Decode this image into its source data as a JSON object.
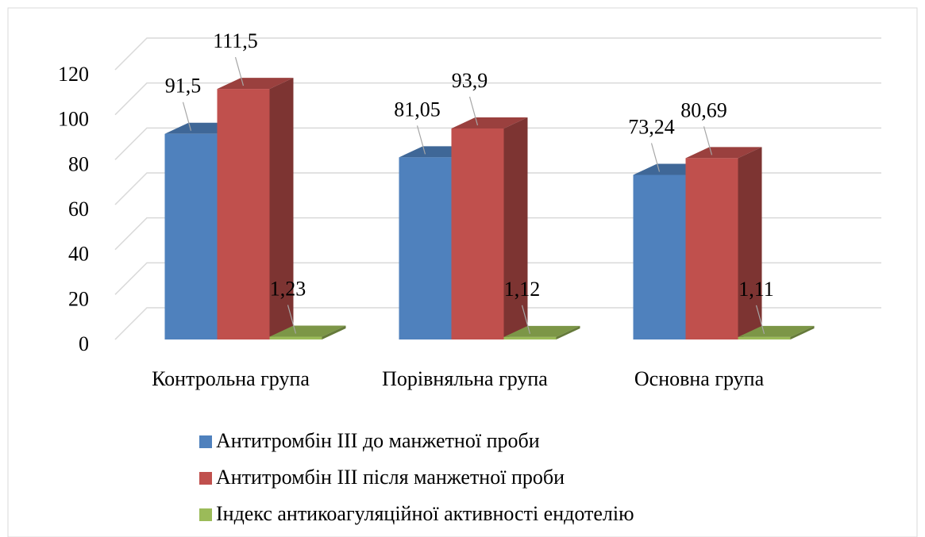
{
  "chart_data": {
    "type": "bar3d",
    "categories": [
      "Контрольна група",
      "Порівняльна група",
      "Основна група"
    ],
    "series": [
      {
        "name": "Антитромбін III до манжетної проби",
        "color": "#4f81bd",
        "values": [
          91.5,
          81.05,
          73.24
        ],
        "value_labels": [
          "91,5",
          "81,05",
          "73,24"
        ]
      },
      {
        "name": "Антитромбін III після манжетної проби",
        "color": "#c0504d",
        "values": [
          111.5,
          93.9,
          80.69
        ],
        "value_labels": [
          "111,5",
          "93,9",
          "80,69"
        ]
      },
      {
        "name": "Індекс антикоагуляційної активності ендотелію",
        "color": "#9bbb59",
        "values": [
          1.23,
          1.12,
          1.11
        ],
        "value_labels": [
          "1,23",
          "1,12",
          "1,11"
        ]
      }
    ],
    "ylim": [
      0,
      120
    ],
    "yticks": [
      0,
      20,
      40,
      60,
      80,
      100,
      120
    ],
    "grid": true,
    "legend": "bottom"
  }
}
